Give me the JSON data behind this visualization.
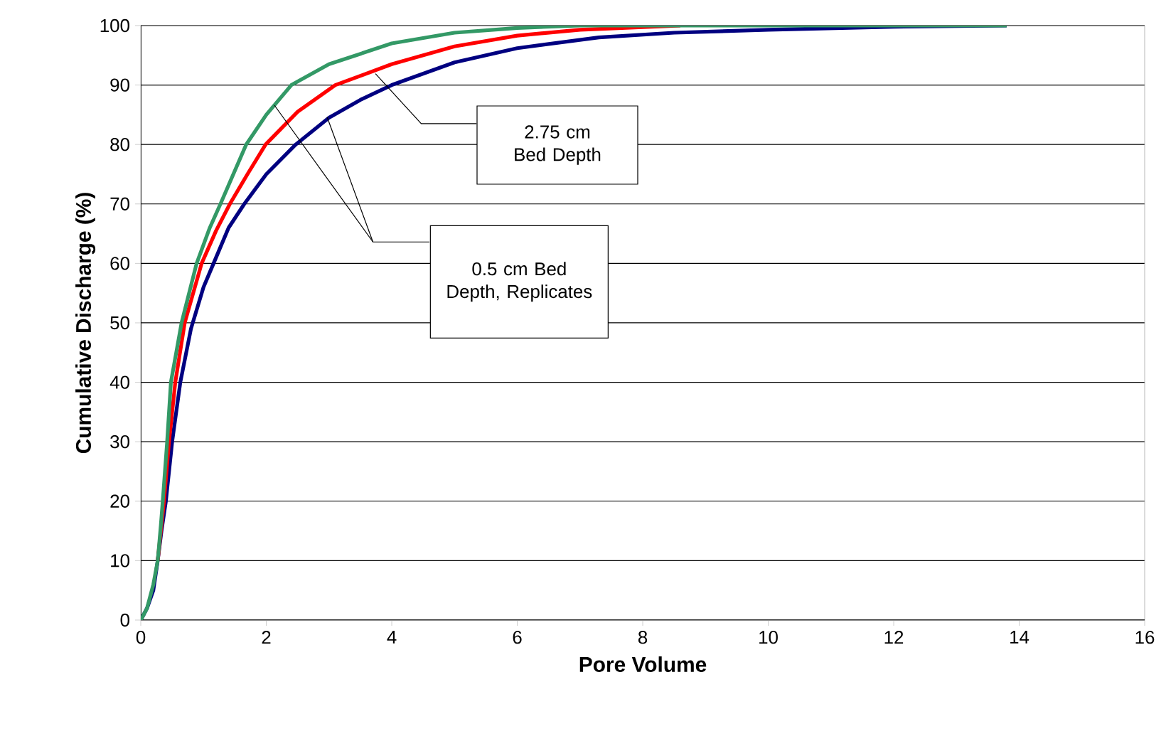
{
  "chart_data": {
    "type": "line",
    "xlabel": "Pore Volume",
    "ylabel": "Cumulative Discharge (%)",
    "xlim": [
      0,
      16
    ],
    "ylim": [
      0,
      100
    ],
    "xticks": [
      0,
      2,
      4,
      6,
      8,
      10,
      12,
      14,
      16
    ],
    "yticks": [
      0,
      10,
      20,
      30,
      40,
      50,
      60,
      70,
      80,
      90,
      100
    ],
    "grid": "y",
    "marker": "none",
    "line_style": "solid",
    "annotations": [
      "2.75 cm Bed Depth",
      "0.5 cm Bed Depth, Replicates"
    ],
    "series": [
      {
        "color": "#000080",
        "x": [
          0,
          0.1,
          0.2,
          0.27,
          0.33,
          0.4,
          0.5,
          0.63,
          0.8,
          1.0,
          1.16,
          1.4,
          1.65,
          2.0,
          2.47,
          3.0,
          3.5,
          4.0,
          5.0,
          6.0,
          7.3,
          8.5,
          10.0,
          12.0,
          13.8
        ],
        "values": [
          0,
          2,
          5,
          10,
          15,
          20,
          30,
          40,
          49,
          56,
          60,
          66,
          70,
          75,
          80,
          84.5,
          87.5,
          90,
          93.8,
          96.2,
          98,
          98.8,
          99.3,
          99.8,
          100
        ]
      },
      {
        "color": "#ff0000",
        "x": [
          0.27,
          0.33,
          0.37,
          0.45,
          0.55,
          0.7,
          0.97,
          1.2,
          1.42,
          1.7,
          1.99,
          2.5,
          3.1,
          4.0,
          5.0,
          6.0,
          7.0,
          8.6
        ],
        "values": [
          10,
          16,
          20,
          30,
          40,
          50,
          60,
          65.5,
          70,
          75,
          80,
          85.5,
          90,
          93.5,
          96.5,
          98.3,
          99.3,
          100
        ]
      },
      {
        "color": "#339966",
        "x": [
          0,
          0.1,
          0.2,
          0.27,
          0.32,
          0.35,
          0.42,
          0.48,
          0.65,
          0.89,
          1.1,
          1.27,
          1.68,
          2.0,
          2.4,
          3.0,
          4.0,
          5.0,
          6.0,
          7.0,
          13.8
        ],
        "values": [
          0,
          2,
          6,
          10,
          16,
          20,
          30,
          40,
          50,
          60,
          66,
          70,
          80,
          85,
          90,
          93.5,
          97,
          98.8,
          99.6,
          100,
          100
        ]
      }
    ]
  }
}
